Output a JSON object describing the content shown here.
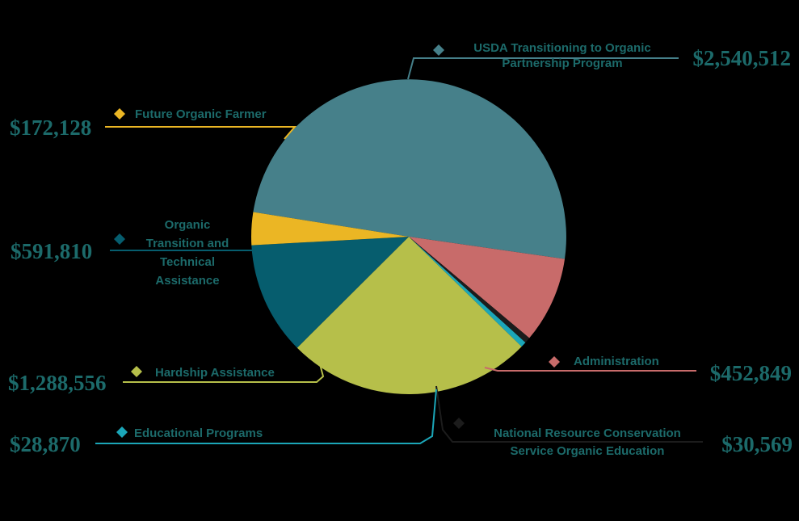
{
  "chart_data": {
    "type": "pie",
    "slices": [
      {
        "label": "USDA Transitioning to Organic Partnership Program",
        "label_lines": [
          "USDA Transitioning to Organic",
          "Partnership Program"
        ],
        "value": 2540512,
        "value_label": "$2,540,512",
        "color": "#46808a"
      },
      {
        "label": "Administration",
        "label_lines": [
          "Administration"
        ],
        "value": 452849,
        "value_label": "$452,849",
        "color": "#c86b6a"
      },
      {
        "label": "National Resource Conservation Service Organic Education",
        "label_lines": [
          "National Resource Conservation",
          "Service Organic Education"
        ],
        "value": 30569,
        "value_label": "$30,569",
        "color": "#1c1c1c"
      },
      {
        "label": "Educational Programs",
        "label_lines": [
          "Educational Programs"
        ],
        "value": 28870,
        "value_label": "$28,870",
        "color": "#1ba6b8"
      },
      {
        "label": "Hardship Assistance",
        "label_lines": [
          "Hardship Assistance"
        ],
        "value": 1288556,
        "value_label": "$1,288,556",
        "color": "#b6bf4a"
      },
      {
        "label": "Organic Transition and Technical Assistance",
        "label_lines": [
          "Organic",
          "Transition and",
          "Technical",
          "Assistance"
        ],
        "value": 591810,
        "value_label": "$591,810",
        "color": "#065d6e"
      },
      {
        "label": "Future Organic Farmer",
        "label_lines": [
          "Future Organic Farmer"
        ],
        "value": 172128,
        "value_label": "$172,128",
        "color": "#ebb624"
      }
    ],
    "legend": "callouts",
    "colors": {
      "label_text": "#1c6a6a",
      "amount_text": "#1c6a6a",
      "background": "#000000"
    }
  }
}
